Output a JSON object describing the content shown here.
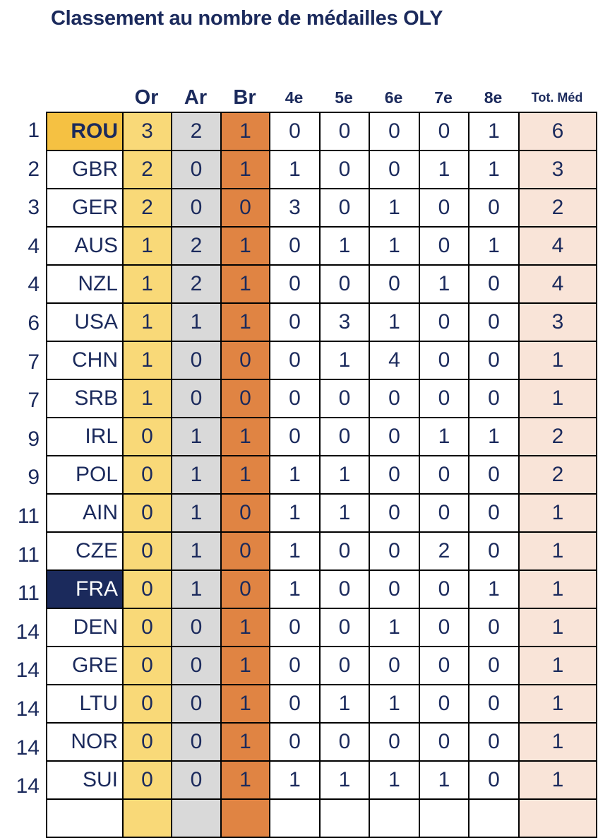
{
  "title": "Classement au nombre de médailles OLY",
  "headers": [
    "Or",
    "Ar",
    "Br",
    "4e",
    "5e",
    "6e",
    "7e",
    "8e",
    "Tot. Méd"
  ],
  "colors": {
    "text": "#1b2a5c",
    "gold": "#f9d978",
    "silver": "#d9d9d9",
    "bronze": "#e08443",
    "total": "#f9e4d8",
    "leader": "#f5c142",
    "france": "#1b2a5c"
  },
  "rows": [
    {
      "rank": "1",
      "country": "ROU",
      "values": [
        "3",
        "2",
        "1",
        "0",
        "0",
        "0",
        "0",
        "1",
        "6"
      ]
    },
    {
      "rank": "2",
      "country": "GBR",
      "values": [
        "2",
        "0",
        "1",
        "1",
        "0",
        "0",
        "1",
        "1",
        "3"
      ]
    },
    {
      "rank": "3",
      "country": "GER",
      "values": [
        "2",
        "0",
        "0",
        "3",
        "0",
        "1",
        "0",
        "0",
        "2"
      ]
    },
    {
      "rank": "4",
      "country": "AUS",
      "values": [
        "1",
        "2",
        "1",
        "0",
        "1",
        "1",
        "0",
        "1",
        "4"
      ]
    },
    {
      "rank": "4",
      "country": "NZL",
      "values": [
        "1",
        "2",
        "1",
        "0",
        "0",
        "0",
        "1",
        "0",
        "4"
      ]
    },
    {
      "rank": "6",
      "country": "USA",
      "values": [
        "1",
        "1",
        "1",
        "0",
        "3",
        "1",
        "0",
        "0",
        "3"
      ]
    },
    {
      "rank": "7",
      "country": "CHN",
      "values": [
        "1",
        "0",
        "0",
        "0",
        "1",
        "4",
        "0",
        "0",
        "1"
      ]
    },
    {
      "rank": "7",
      "country": "SRB",
      "values": [
        "1",
        "0",
        "0",
        "0",
        "0",
        "0",
        "0",
        "0",
        "1"
      ]
    },
    {
      "rank": "9",
      "country": "IRL",
      "values": [
        "0",
        "1",
        "1",
        "0",
        "0",
        "0",
        "1",
        "1",
        "2"
      ]
    },
    {
      "rank": "9",
      "country": "POL",
      "values": [
        "0",
        "1",
        "1",
        "1",
        "1",
        "0",
        "0",
        "0",
        "2"
      ]
    },
    {
      "rank": "11",
      "country": "AIN",
      "values": [
        "0",
        "1",
        "0",
        "1",
        "1",
        "0",
        "0",
        "0",
        "1"
      ]
    },
    {
      "rank": "11",
      "country": "CZE",
      "values": [
        "0",
        "1",
        "0",
        "1",
        "0",
        "0",
        "2",
        "0",
        "1"
      ]
    },
    {
      "rank": "11",
      "country": "FRA",
      "values": [
        "0",
        "1",
        "0",
        "1",
        "0",
        "0",
        "0",
        "1",
        "1"
      ]
    },
    {
      "rank": "14",
      "country": "DEN",
      "values": [
        "0",
        "0",
        "1",
        "0",
        "0",
        "1",
        "0",
        "0",
        "1"
      ]
    },
    {
      "rank": "14",
      "country": "GRE",
      "values": [
        "0",
        "0",
        "1",
        "0",
        "0",
        "0",
        "0",
        "0",
        "1"
      ]
    },
    {
      "rank": "14",
      "country": "LTU",
      "values": [
        "0",
        "0",
        "1",
        "0",
        "1",
        "1",
        "0",
        "0",
        "1"
      ]
    },
    {
      "rank": "14",
      "country": "NOR",
      "values": [
        "0",
        "0",
        "1",
        "0",
        "0",
        "0",
        "0",
        "0",
        "1"
      ]
    },
    {
      "rank": "14",
      "country": "SUI",
      "values": [
        "0",
        "0",
        "1",
        "1",
        "1",
        "1",
        "1",
        "0",
        "1"
      ]
    }
  ]
}
